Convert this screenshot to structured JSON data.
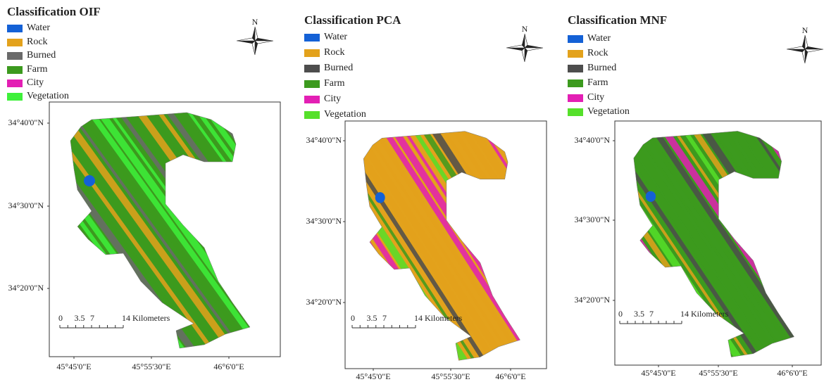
{
  "panels": [
    {
      "title": "Classification OIF",
      "legend": [
        {
          "label": "Water",
          "color": "#1461d6"
        },
        {
          "label": "Rock",
          "color": "#e3a21c"
        },
        {
          "label": "Burned",
          "color": "#6a6a6a"
        },
        {
          "label": "Farm",
          "color": "#3c9a1e"
        },
        {
          "label": "City",
          "color": "#e31fb4"
        },
        {
          "label": "Vegetation",
          "color": "#3ef03a"
        }
      ],
      "north": "N",
      "lat_labels": [
        "34°40'0\"N",
        "34°30'0\"N",
        "34°20'0\"N"
      ],
      "lon_labels": [
        "45°45'0\"E",
        "45°55'30\"E",
        "46°6'0\"E"
      ],
      "scale_labels": [
        "0",
        "3.5",
        "7",
        "14 Kilometers"
      ]
    },
    {
      "title": "Classification PCA",
      "legend": [
        {
          "label": "Water",
          "color": "#1461d6"
        },
        {
          "label": "Rock",
          "color": "#e3a21c"
        },
        {
          "label": "Burned",
          "color": "#4d4d4d"
        },
        {
          "label": "Farm",
          "color": "#3c9a1e"
        },
        {
          "label": "City",
          "color": "#e31fb4"
        },
        {
          "label": "Vegetation",
          "color": "#55e02a"
        }
      ],
      "north": "N",
      "lat_labels": [
        "34°40'0\"N",
        "34°30'0\"N",
        "34°20'0\"N"
      ],
      "lon_labels": [
        "45°45'0\"E",
        "45°55'30\"E",
        "46°6'0\"E"
      ],
      "scale_labels": [
        "0",
        "3.5",
        "7",
        "14 Kilometers"
      ]
    },
    {
      "title": "Classification MNF",
      "legend": [
        {
          "label": "Water",
          "color": "#1461d6"
        },
        {
          "label": "Rock",
          "color": "#e3a21c"
        },
        {
          "label": "Burned",
          "color": "#4d4d4d"
        },
        {
          "label": "Farm",
          "color": "#3c9a1e"
        },
        {
          "label": "City",
          "color": "#e31fb4"
        },
        {
          "label": "Vegetation",
          "color": "#55e02a"
        }
      ],
      "north": "N",
      "lat_labels": [
        "34°40'0\"N",
        "34°30'0\"N",
        "34°20'0\"N"
      ],
      "lon_labels": [
        "45°45'0\"E",
        "45°55'30\"E",
        "46°6'0\"E"
      ],
      "scale_labels": [
        "0",
        "3.5",
        "7",
        "14 Kilometers"
      ]
    }
  ]
}
